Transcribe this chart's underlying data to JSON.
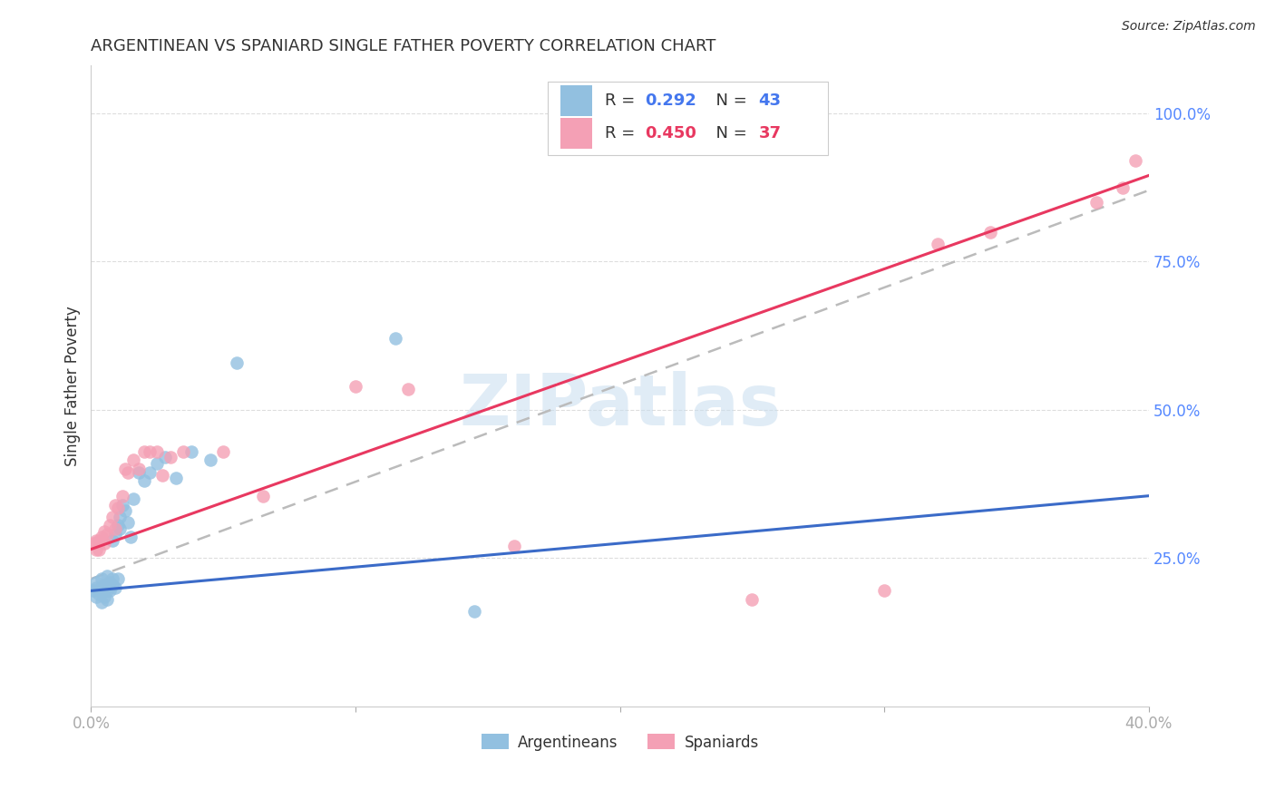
{
  "title": "ARGENTINEAN VS SPANIARD SINGLE FATHER POVERTY CORRELATION CHART",
  "source": "Source: ZipAtlas.com",
  "ylabel_label": "Single Father Poverty",
  "legend_blue_R": "0.292",
  "legend_blue_N": "43",
  "legend_pink_R": "0.450",
  "legend_pink_N": "37",
  "xlim": [
    0.0,
    0.4
  ],
  "ylim": [
    0.0,
    1.08
  ],
  "blue_color": "#92C0E0",
  "pink_color": "#F4A0B5",
  "blue_line_color": "#3B6BC8",
  "pink_line_color": "#E83860",
  "dashed_line_color": "#BBBBBB",
  "watermark_color": "#C8DDEF",
  "background_color": "#FFFFFF",
  "text_color": "#333333",
  "axis_label_color": "#5588FF",
  "legend_R_color": "#333333",
  "legend_val_color_blue": "#4477EE",
  "legend_N_label_color": "#333333",
  "legend_N_val_color": "#4477EE",
  "legend_pink_val_color": "#E83860",
  "argentinean_x": [
    0.001,
    0.002,
    0.002,
    0.002,
    0.003,
    0.003,
    0.004,
    0.004,
    0.004,
    0.005,
    0.005,
    0.005,
    0.006,
    0.006,
    0.006,
    0.006,
    0.007,
    0.007,
    0.008,
    0.008,
    0.008,
    0.009,
    0.009,
    0.01,
    0.01,
    0.011,
    0.011,
    0.012,
    0.013,
    0.014,
    0.015,
    0.016,
    0.018,
    0.02,
    0.022,
    0.025,
    0.028,
    0.032,
    0.038,
    0.045,
    0.055,
    0.115,
    0.145
  ],
  "argentinean_y": [
    0.195,
    0.185,
    0.2,
    0.21,
    0.19,
    0.195,
    0.175,
    0.2,
    0.215,
    0.185,
    0.195,
    0.205,
    0.18,
    0.195,
    0.205,
    0.22,
    0.195,
    0.21,
    0.205,
    0.215,
    0.28,
    0.2,
    0.29,
    0.215,
    0.305,
    0.3,
    0.32,
    0.34,
    0.33,
    0.31,
    0.285,
    0.35,
    0.395,
    0.38,
    0.395,
    0.41,
    0.42,
    0.385,
    0.43,
    0.415,
    0.58,
    0.62,
    0.16
  ],
  "spaniard_x": [
    0.001,
    0.002,
    0.002,
    0.003,
    0.003,
    0.004,
    0.005,
    0.005,
    0.006,
    0.007,
    0.008,
    0.009,
    0.009,
    0.01,
    0.012,
    0.013,
    0.014,
    0.016,
    0.018,
    0.02,
    0.022,
    0.025,
    0.027,
    0.03,
    0.035,
    0.05,
    0.065,
    0.1,
    0.12,
    0.16,
    0.25,
    0.3,
    0.32,
    0.34,
    0.38,
    0.39,
    0.395
  ],
  "spaniard_y": [
    0.275,
    0.265,
    0.28,
    0.265,
    0.28,
    0.285,
    0.275,
    0.295,
    0.29,
    0.305,
    0.32,
    0.3,
    0.34,
    0.335,
    0.355,
    0.4,
    0.395,
    0.415,
    0.4,
    0.43,
    0.43,
    0.43,
    0.39,
    0.42,
    0.43,
    0.43,
    0.355,
    0.54,
    0.535,
    0.27,
    0.18,
    0.195,
    0.78,
    0.8,
    0.85,
    0.875,
    0.92
  ],
  "blue_line": {
    "x0": 0.0,
    "y0": 0.195,
    "x1": 0.4,
    "y1": 0.355
  },
  "pink_line": {
    "x0": 0.0,
    "y0": 0.265,
    "x1": 0.4,
    "y1": 0.895
  },
  "dash_line": {
    "x0": 0.0,
    "y0": 0.215,
    "x1": 0.4,
    "y1": 0.87
  }
}
